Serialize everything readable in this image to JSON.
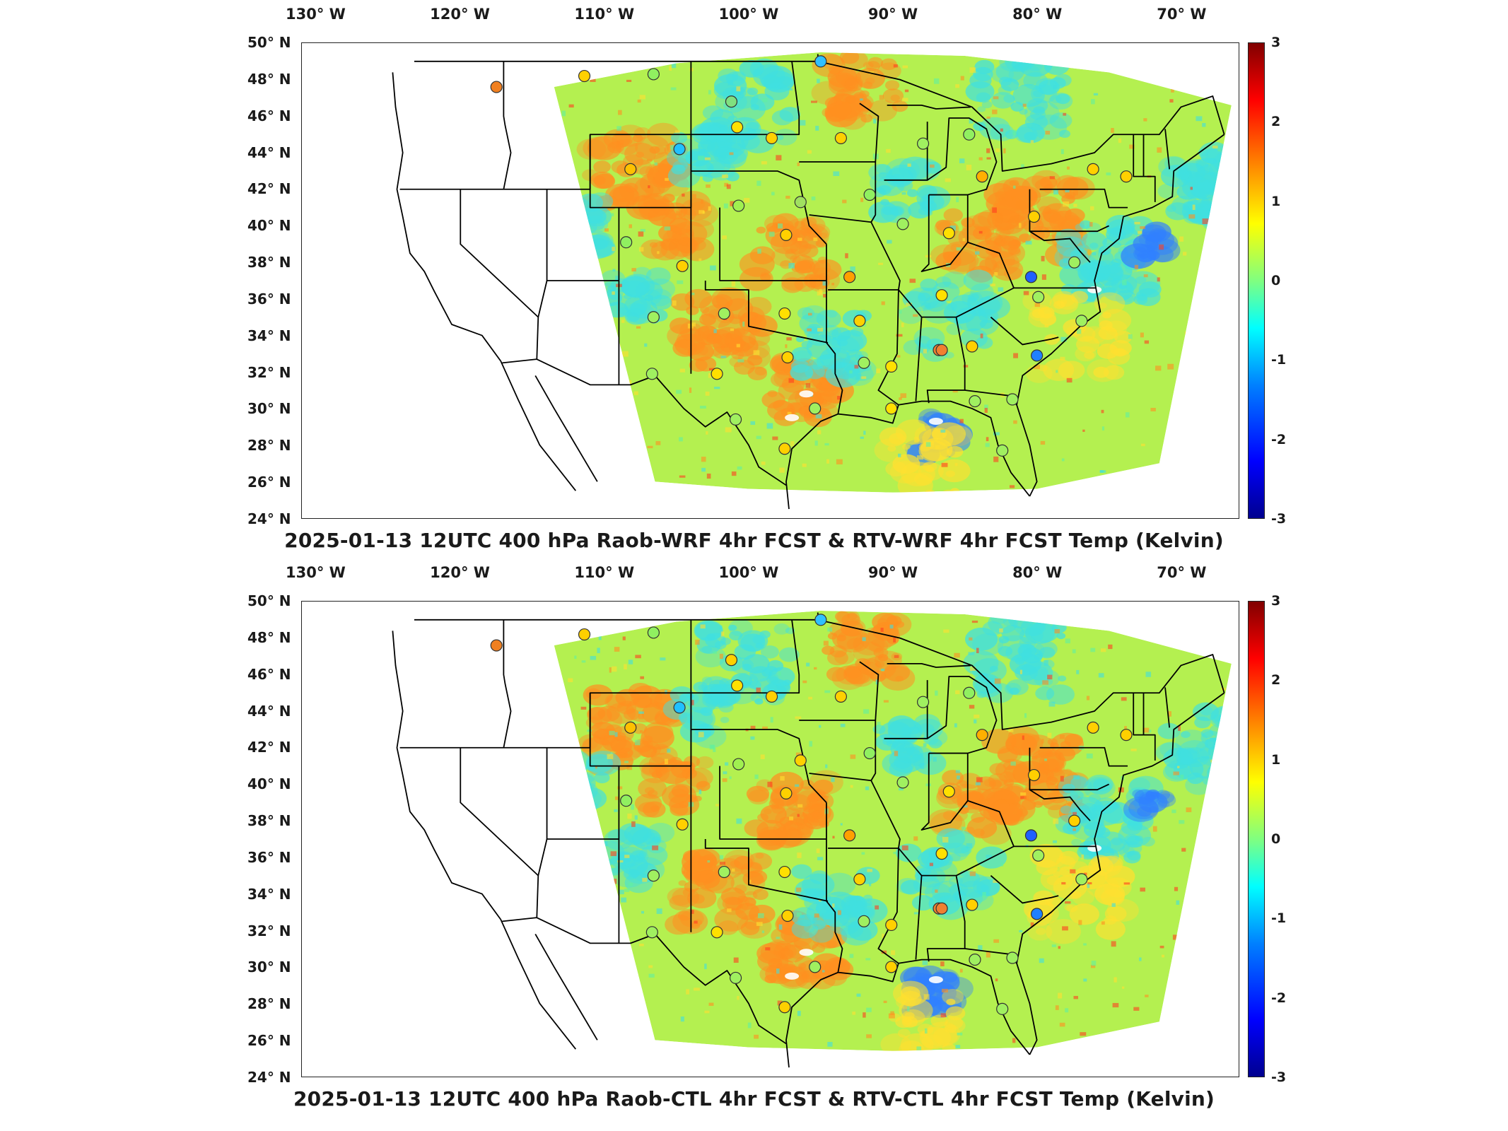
{
  "panels": [
    {
      "id": "top",
      "title": "2025-01-13 12UTC 400 hPa Raob-WRF 4hr FCST & RTV-WRF 4hr FCST Temp (Kelvin)"
    },
    {
      "id": "bottom",
      "title": "2025-01-13 12UTC 400 hPa Raob-CTL 4hr FCST & RTV-CTL 4hr FCST Temp (Kelvin)"
    }
  ],
  "axes": {
    "longitude_ticks": [
      "130° W",
      "120° W",
      "110° W",
      "100° W",
      "90° W",
      "80° W",
      "70° W"
    ],
    "latitude_ticks": [
      "50° N",
      "48° N",
      "46° N",
      "44° N",
      "42° N",
      "40° N",
      "38° N",
      "36° N",
      "34° N",
      "32° N",
      "30° N",
      "28° N",
      "26° N",
      "24° N"
    ],
    "lon_range": [
      -131,
      -66
    ],
    "lat_range": [
      24,
      50
    ]
  },
  "colorbar": {
    "ticks": [
      "3",
      "2",
      "1",
      "0",
      "-1",
      "-2",
      "-3"
    ],
    "range": [
      -3,
      3
    ],
    "colormap": "jet"
  },
  "colors": {
    "field_base": "#b4f050",
    "warm": "#ff9020",
    "cool": "#40e0e0",
    "boundary": "#000000"
  }
}
